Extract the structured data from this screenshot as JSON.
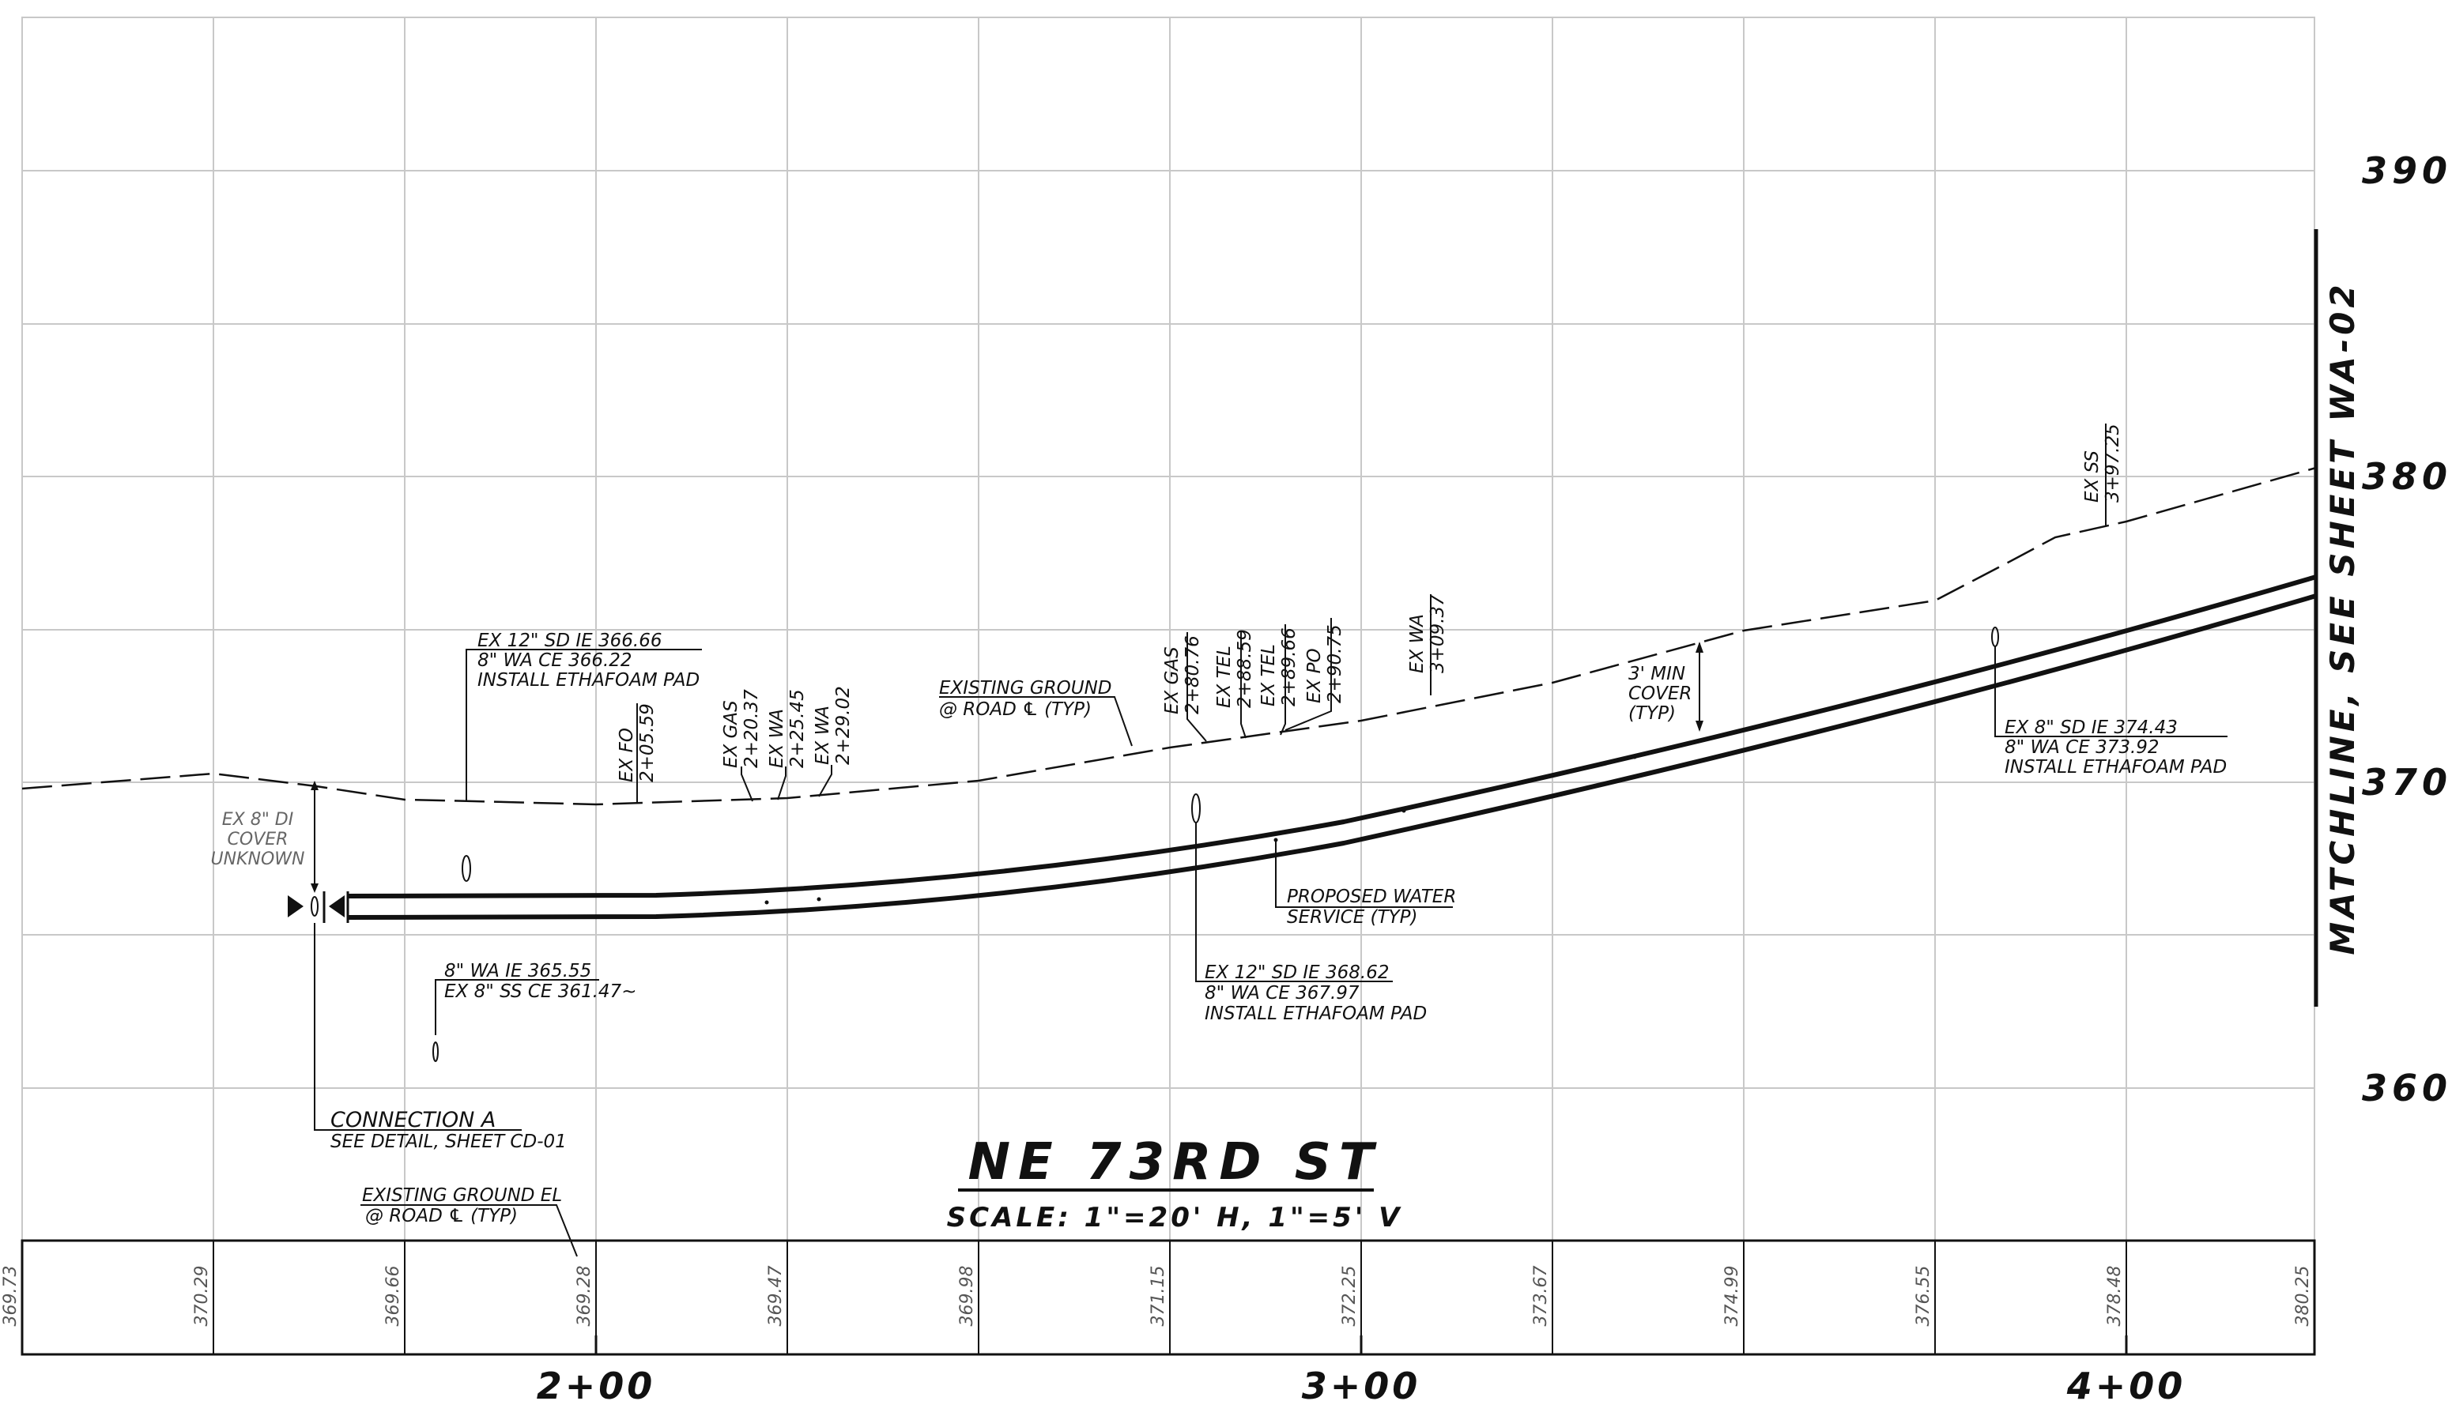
{
  "title": "NE 73RD ST",
  "scale": "SCALE: 1\"=20' H, 1\"=5' V",
  "matchline": "MATCHLINE, SEE SHEET WA-02",
  "elevation_labels": [
    "390",
    "380",
    "370",
    "360"
  ],
  "station_labels": [
    "2+00",
    "3+00",
    "4+00"
  ],
  "ground_elevations": [
    "369.73",
    "370.29",
    "369.66",
    "369.28",
    "369.47",
    "369.98",
    "371.15",
    "372.25",
    "373.67",
    "374.99",
    "376.55",
    "378.48",
    "380.25"
  ],
  "callouts": {
    "sd_366": [
      "EX 12\" SD IE 366.66",
      "8\" WA CE 366.22",
      "INSTALL ETHAFOAM PAD"
    ],
    "existing_ground_top": [
      "EXISTING GROUND",
      "@ ROAD ℄ (TYP)"
    ],
    "di_cover": [
      "EX 8\" DI",
      "COVER",
      "UNKNOWN"
    ],
    "wa_365": [
      "8\" WA IE 365.55",
      "EX 8\" SS CE 361.47~"
    ],
    "connection_a": [
      "CONNECTION A",
      "SEE DETAIL, SHEET CD-01"
    ],
    "existing_ground_el": [
      "EXISTING GROUND EL",
      "@ ROAD ℄ (TYP)"
    ],
    "proposed_water": [
      "PROPOSED WATER",
      "SERVICE (TYP)"
    ],
    "sd_368": [
      "EX 12\" SD IE 368.62",
      "8\" WA CE 367.97",
      "INSTALL ETHAFOAM PAD"
    ],
    "min_cover": [
      "3' MIN",
      "COVER",
      "(TYP)"
    ],
    "sd_374": [
      "EX 8\" SD IE 374.43",
      "8\" WA CE 373.92",
      "INSTALL ETHAFOAM PAD"
    ]
  },
  "utility_crossings": [
    [
      "EX FO",
      "2+05.59"
    ],
    [
      "EX GAS",
      "2+20.37"
    ],
    [
      "EX WA",
      "2+25.45"
    ],
    [
      "EX WA",
      "2+29.02"
    ],
    [
      "EX GAS",
      "2+80.76"
    ],
    [
      "EX TEL",
      "2+88.59"
    ],
    [
      "EX TEL",
      "2+89.66"
    ],
    [
      "EX PO",
      "2+90.75"
    ],
    [
      "EX WA",
      "3+09.37"
    ],
    [
      "EX SS",
      "3+97.25"
    ]
  ]
}
